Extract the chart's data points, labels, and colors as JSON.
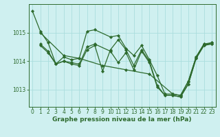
{
  "xlabel": "Graphe pression niveau de la mer (hPa)",
  "bg_color": "#cff0f0",
  "grid_color": "#aadddd",
  "line_color": "#2d6a2d",
  "marker_color": "#2d6a2d",
  "axes_color": "#2d6a2d",
  "text_color": "#2d6a2d",
  "xlim": [
    -0.5,
    23.5
  ],
  "ylim": [
    1012.4,
    1016.0
  ],
  "yticks": [
    1013,
    1014,
    1015
  ],
  "xticks": [
    0,
    1,
    2,
    3,
    4,
    5,
    6,
    7,
    8,
    9,
    10,
    11,
    12,
    13,
    14,
    15,
    16,
    17,
    18,
    19,
    20,
    21,
    22,
    23
  ],
  "series": [
    {
      "x": [
        0,
        1,
        2,
        3,
        4,
        5,
        6,
        7,
        8,
        10,
        11,
        12,
        13,
        14,
        15,
        16,
        17,
        18,
        19,
        20,
        21,
        22,
        23
      ],
      "y": [
        1015.75,
        1015.05,
        1014.65,
        1013.9,
        1014.15,
        1014.05,
        1014.1,
        1015.05,
        1015.1,
        1014.85,
        1014.9,
        1014.45,
        1014.2,
        1014.55,
        1014.05,
        1013.5,
        1012.85,
        1012.85,
        1012.8,
        1013.3,
        1014.15,
        1014.6,
        1014.6
      ]
    },
    {
      "x": [
        1,
        2,
        3,
        4,
        5,
        6,
        7,
        8,
        9,
        10,
        11,
        12,
        13,
        14,
        15,
        16,
        17,
        18,
        19,
        20,
        21,
        22,
        23
      ],
      "y": [
        1014.6,
        1014.35,
        1013.9,
        1014.0,
        1013.9,
        1013.85,
        1014.4,
        1014.55,
        1013.65,
        1014.4,
        1014.75,
        1014.4,
        1013.85,
        1014.4,
        1014.0,
        1013.15,
        1012.8,
        1012.8,
        1012.75,
        1013.2,
        1014.1,
        1014.55,
        1014.65
      ]
    },
    {
      "x": [
        1,
        2,
        3,
        4,
        5,
        6,
        7,
        8,
        10,
        11,
        12,
        13,
        14,
        15,
        16,
        17,
        18,
        19,
        20,
        21,
        22,
        23
      ],
      "y": [
        1014.55,
        1014.3,
        1013.9,
        1014.0,
        1013.95,
        1013.9,
        1014.5,
        1014.6,
        1014.35,
        1013.95,
        1014.3,
        1013.7,
        1014.35,
        1013.95,
        1013.1,
        1012.8,
        1012.8,
        1012.75,
        1013.2,
        1014.1,
        1014.55,
        1014.6
      ]
    },
    {
      "x": [
        1,
        4,
        6,
        9,
        12,
        15,
        18,
        19,
        20,
        21,
        22,
        23
      ],
      "y": [
        1015.0,
        1014.2,
        1014.1,
        1013.85,
        1013.7,
        1013.55,
        1012.85,
        1012.8,
        1013.3,
        1014.15,
        1014.6,
        1014.65
      ]
    }
  ],
  "figsize": [
    3.2,
    2.0
  ],
  "dpi": 100,
  "xlabel_fontsize": 6.5,
  "tick_fontsize": 5.5,
  "linewidth": 0.9,
  "markersize": 2.2
}
